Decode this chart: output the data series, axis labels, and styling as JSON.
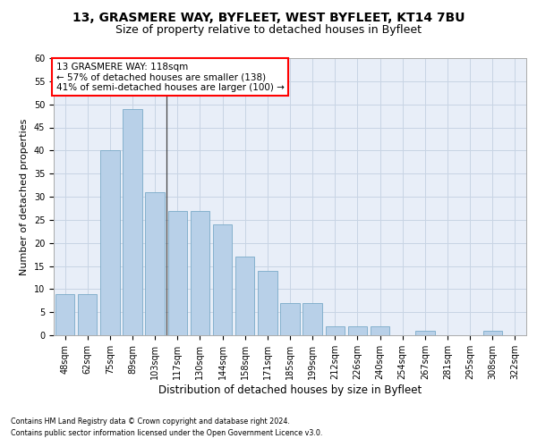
{
  "title1": "13, GRASMERE WAY, BYFLEET, WEST BYFLEET, KT14 7BU",
  "title2": "Size of property relative to detached houses in Byfleet",
  "xlabel": "Distribution of detached houses by size in Byfleet",
  "ylabel": "Number of detached properties",
  "categories": [
    "48sqm",
    "62sqm",
    "75sqm",
    "89sqm",
    "103sqm",
    "117sqm",
    "130sqm",
    "144sqm",
    "158sqm",
    "171sqm",
    "185sqm",
    "199sqm",
    "212sqm",
    "226sqm",
    "240sqm",
    "254sqm",
    "267sqm",
    "281sqm",
    "295sqm",
    "308sqm",
    "322sqm"
  ],
  "values": [
    9,
    9,
    40,
    49,
    31,
    27,
    27,
    24,
    17,
    14,
    7,
    7,
    2,
    2,
    2,
    0,
    1,
    0,
    0,
    1,
    0
  ],
  "bar_color_normal": "#b8d0e8",
  "bar_edge_color": "#7aaac8",
  "annotation_title": "13 GRASMERE WAY: 118sqm",
  "annotation_line1": "← 57% of detached houses are smaller (138)",
  "annotation_line2": "41% of semi-detached houses are larger (100) →",
  "footnote1": "Contains HM Land Registry data © Crown copyright and database right 2024.",
  "footnote2": "Contains public sector information licensed under the Open Government Licence v3.0.",
  "ylim": [
    0,
    60
  ],
  "yticks": [
    0,
    5,
    10,
    15,
    20,
    25,
    30,
    35,
    40,
    45,
    50,
    55,
    60
  ],
  "grid_color": "#c8d4e4",
  "background_color": "#e8eef8",
  "title1_fontsize": 10,
  "title2_fontsize": 9,
  "tick_fontsize": 7,
  "xlabel_fontsize": 8.5,
  "ylabel_fontsize": 8,
  "annot_fontsize": 7.5,
  "footnote_fontsize": 5.8,
  "vline_pos": 4.5
}
